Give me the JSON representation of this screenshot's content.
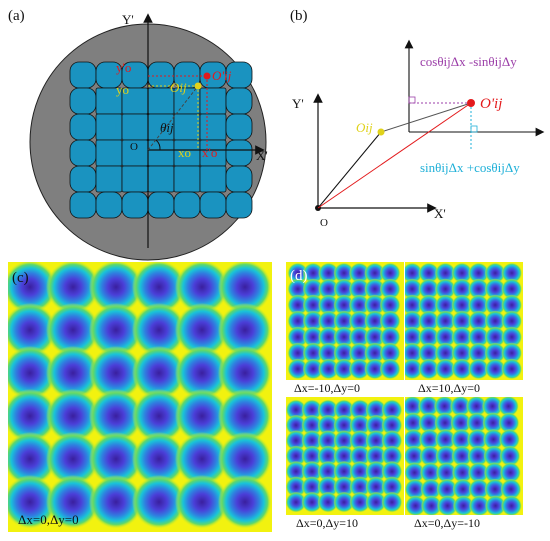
{
  "panels": {
    "a": {
      "label": "(a)",
      "axis_y": "Y'",
      "axis_x": "X'",
      "origin": "O",
      "texts": {
        "yo_prime": "y'o",
        "yo": "yo",
        "oij": "Oij",
        "o_prime_ij": "O'ij",
        "theta_ij": "θij",
        "xo": "xo",
        "xo_prime": "x'o"
      },
      "colors": {
        "disk": "#7f7f7f",
        "tiles": "#1a93c0",
        "red": "#e31a1c",
        "yellow": "#e0d21a"
      }
    },
    "b": {
      "label": "(b)",
      "axis_y": "Y'",
      "axis_x": "X'",
      "origin": "O",
      "oij": "Oij",
      "o_prime_ij": "O'ij",
      "eq_top": "cosθijΔx -sinθijΔy",
      "eq_bottom": "sinθijΔx +cosθijΔy",
      "colors": {
        "eq_top": "#9b3ea8",
        "eq_bottom": "#1fb0d8",
        "red": "#e31a1c",
        "yellow": "#e0d21a"
      }
    },
    "c": {
      "label": "(c)",
      "caption": "Δx=0,Δy=0",
      "grid": [
        6,
        6
      ]
    },
    "d": {
      "label": "(d)",
      "captions": [
        "Δx=-10,Δy=0",
        "Δx=10,Δy=0",
        "Δx=0,Δy=10",
        "Δx=0,Δy=-10"
      ]
    }
  }
}
